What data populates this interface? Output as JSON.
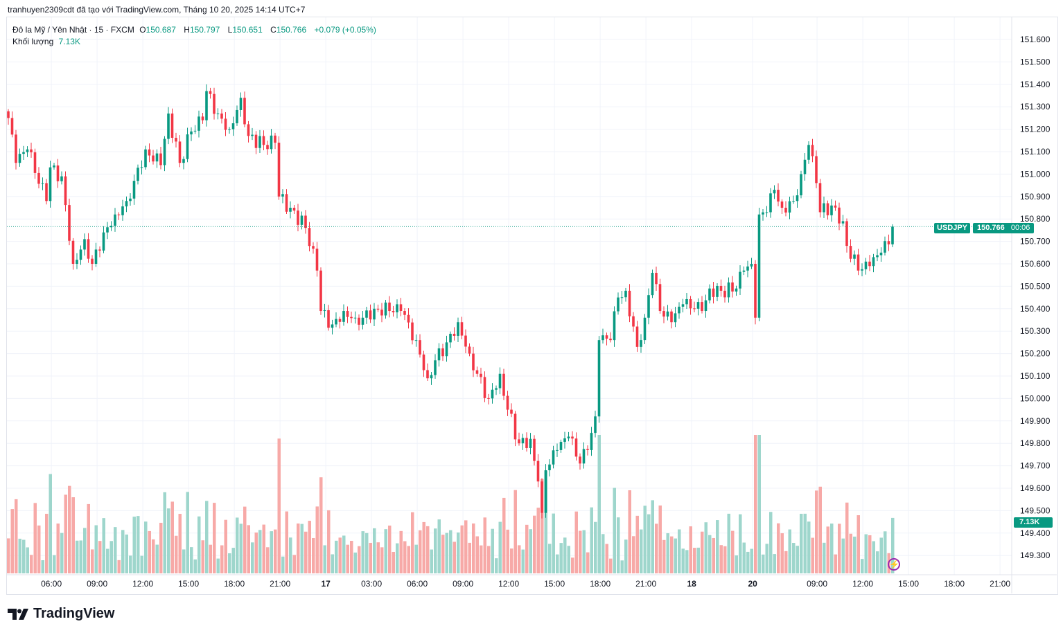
{
  "caption": "tranhuyen2309cdt đã tạo với TradingView.com, Tháng 10 20, 2025 14:14 UTC+7",
  "legend": {
    "symbol": "Đô la Mỹ / Yên Nhật · 15 · FXCM",
    "open_label": "O",
    "open": "150.687",
    "high_label": "H",
    "high": "150.797",
    "low_label": "L",
    "low": "150.651",
    "close_label": "C",
    "close": "150.766",
    "change": "+0.079 (+0.05%)",
    "volume_label": "Khối lượng",
    "volume": "7.13K"
  },
  "price_tag": {
    "symbol": "USDJPY",
    "price": "150.766",
    "countdown": "00:06"
  },
  "volume_tag": "7.13K",
  "brand": "TradingView",
  "colors": {
    "up": "#089981",
    "down": "#F23645",
    "up_vol": "#9ed6cc",
    "down_vol": "#f7a9a7"
  },
  "chart_data": {
    "type": "candlestick",
    "title": "USDJPY 15m FXCM",
    "ylim": [
      149.2,
      151.7
    ],
    "yticks": [
      "151.600",
      "151.500",
      "151.400",
      "151.300",
      "151.200",
      "151.100",
      "151.000",
      "150.900",
      "150.800",
      "150.700",
      "150.600",
      "150.500",
      "150.400",
      "150.300",
      "150.200",
      "150.100",
      "150.000",
      "149.900",
      "149.800",
      "149.700",
      "149.600",
      "149.500",
      "149.400",
      "149.300"
    ],
    "xticks": [
      {
        "bar": 11.3,
        "label": "06:00"
      },
      {
        "bar": 23.3,
        "label": "09:00"
      },
      {
        "bar": 35.3,
        "label": "12:00"
      },
      {
        "bar": 47.3,
        "label": "15:00"
      },
      {
        "bar": 59.3,
        "label": "18:00"
      },
      {
        "bar": 71.3,
        "label": "21:00"
      },
      {
        "bar": 83.3,
        "label": "17"
      },
      {
        "bar": 95.3,
        "label": "03:00"
      },
      {
        "bar": 107.3,
        "label": "06:00"
      },
      {
        "bar": 119.3,
        "label": "09:00"
      },
      {
        "bar": 131.3,
        "label": "12:00"
      },
      {
        "bar": 143.3,
        "label": "15:00"
      },
      {
        "bar": 155.3,
        "label": "18:00"
      },
      {
        "bar": 167.3,
        "label": "21:00"
      },
      {
        "bar": 179.3,
        "label": "18"
      },
      {
        "bar": 195.3,
        "label": "20"
      },
      {
        "bar": 212.2,
        "label": "09:00"
      },
      {
        "bar": 224.2,
        "label": "12:00"
      },
      {
        "bar": 236.2,
        "label": "15:00"
      },
      {
        "bar": 248.2,
        "label": "18:00"
      },
      {
        "bar": 260.2,
        "label": "21:00"
      }
    ],
    "close_anchors": [
      [
        0,
        151.25
      ],
      [
        2,
        151.05
      ],
      [
        5,
        151.11
      ],
      [
        10,
        150.88
      ],
      [
        11,
        151.03
      ],
      [
        14,
        150.99
      ],
      [
        17,
        150.6
      ],
      [
        20,
        150.71
      ],
      [
        22,
        150.6
      ],
      [
        25,
        150.74
      ],
      [
        28,
        150.82
      ],
      [
        31,
        150.88
      ],
      [
        33,
        150.97
      ],
      [
        36,
        151.11
      ],
      [
        40,
        151.04
      ],
      [
        42,
        151.27
      ],
      [
        45,
        151.05
      ],
      [
        48,
        151.19
      ],
      [
        51,
        151.24
      ],
      [
        52,
        151.37
      ],
      [
        55,
        151.27
      ],
      [
        58,
        151.2
      ],
      [
        61,
        151.34
      ],
      [
        63,
        151.17
      ],
      [
        67,
        151.13
      ],
      [
        70,
        151.14
      ],
      [
        71,
        150.9
      ],
      [
        74,
        150.85
      ],
      [
        78,
        150.76
      ],
      [
        81,
        150.57
      ],
      [
        82,
        150.39
      ],
      [
        85,
        150.33
      ],
      [
        88,
        150.39
      ],
      [
        91,
        150.36
      ],
      [
        93,
        150.36
      ],
      [
        96,
        150.4
      ],
      [
        100,
        150.39
      ],
      [
        103,
        150.39
      ],
      [
        107,
        150.26
      ],
      [
        110,
        150.09
      ],
      [
        112,
        150.17
      ],
      [
        115,
        150.25
      ],
      [
        118,
        150.34
      ],
      [
        121,
        150.2
      ],
      [
        123,
        150.11
      ],
      [
        126,
        150.0
      ],
      [
        129,
        150.11
      ],
      [
        131,
        149.95
      ],
      [
        134,
        149.8
      ],
      [
        137,
        149.82
      ],
      [
        139,
        149.63
      ],
      [
        140,
        149.49
      ],
      [
        141,
        149.68
      ],
      [
        144,
        149.77
      ],
      [
        147,
        149.83
      ],
      [
        150,
        149.71
      ],
      [
        152,
        149.77
      ],
      [
        154,
        149.92
      ],
      [
        155,
        150.26
      ],
      [
        158,
        150.26
      ],
      [
        160,
        150.45
      ],
      [
        162,
        150.48
      ],
      [
        165,
        150.23
      ],
      [
        167,
        150.36
      ],
      [
        169,
        150.56
      ],
      [
        171,
        150.39
      ],
      [
        174,
        150.34
      ],
      [
        177,
        150.42
      ],
      [
        180,
        150.4
      ],
      [
        182,
        150.39
      ],
      [
        184,
        150.49
      ],
      [
        187,
        150.48
      ],
      [
        191,
        150.49
      ],
      [
        193,
        150.57
      ],
      [
        195,
        150.6
      ],
      [
        196,
        150.36
      ],
      [
        197,
        150.82
      ],
      [
        199,
        150.83
      ],
      [
        201,
        150.93
      ],
      [
        203,
        150.85
      ],
      [
        206,
        150.88
      ],
      [
        208,
        151.0
      ],
      [
        210,
        151.13
      ],
      [
        212,
        150.96
      ],
      [
        213,
        150.83
      ],
      [
        216,
        150.86
      ],
      [
        219,
        150.79
      ],
      [
        220,
        150.68
      ],
      [
        223,
        150.57
      ],
      [
        226,
        150.59
      ],
      [
        229,
        150.65
      ],
      [
        231,
        150.687
      ],
      [
        232,
        150.766
      ]
    ],
    "last_volume": 7130,
    "volume_max": 17800
  }
}
